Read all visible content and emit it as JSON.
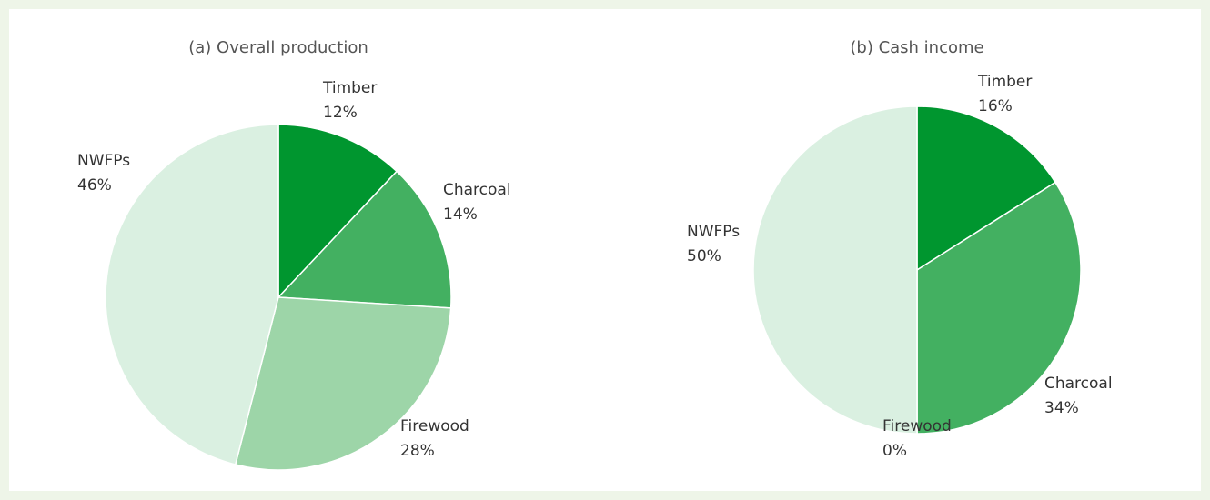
{
  "chart_data": [
    {
      "type": "pie",
      "title": "(a) Overall production",
      "categories": [
        "Timber",
        "Charcoal",
        "Firewood",
        "NWFPs"
      ],
      "values": [
        12,
        14,
        28,
        46
      ],
      "value_labels": [
        "12%",
        "14%",
        "28%",
        "46%"
      ],
      "colors": [
        "#00962f",
        "#43b061",
        "#9dd5a8",
        "#daf0e1"
      ]
    },
    {
      "type": "pie",
      "title": "(b) Cash income",
      "categories": [
        "Timber",
        "Charcoal",
        "Firewood",
        "NWFPs"
      ],
      "values": [
        16,
        34,
        0,
        50
      ],
      "value_labels": [
        "16%",
        "34%",
        "0%",
        "50%"
      ],
      "colors": [
        "#00962f",
        "#43b061",
        "#9dd5a8",
        "#daf0e1"
      ]
    }
  ]
}
